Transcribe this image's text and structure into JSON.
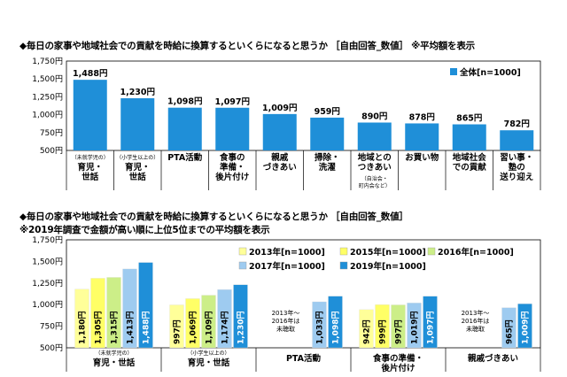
{
  "chart1": {
    "title": "◆毎日の家事や地域社会での貢献を時給に換算するといくらになると思うか ［自由回答_数値］ ※平均額を表示",
    "chart_data": {
      "type": "bar",
      "categories": [
        {
          "main": "育児・\n世話",
          "note": "（未就学児の）"
        },
        {
          "main": "育児・\n世話",
          "note": "（小学生以上の）"
        },
        {
          "main": "PTA活動",
          "note": ""
        },
        {
          "main": "食事の\n準備・\n後片付け",
          "note": ""
        },
        {
          "main": "親戚\nづきあい",
          "note": ""
        },
        {
          "main": "掃除・\n洗濯",
          "note": ""
        },
        {
          "main": "地域との\nつきあい",
          "note": "（自治会・\n町内会など）"
        },
        {
          "main": "お買い物",
          "note": ""
        },
        {
          "main": "地域社会\nでの貢献",
          "note": ""
        },
        {
          "main": "習い事・\n塾の\n送り迎え",
          "note": ""
        }
      ],
      "values": [
        1488,
        1230,
        1098,
        1097,
        1009,
        959,
        890,
        878,
        865,
        782
      ],
      "labels": [
        "1,488円",
        "1,230円",
        "1,098円",
        "1,097円",
        "1,009円",
        "959円",
        "890円",
        "878円",
        "865円",
        "782円"
      ],
      "series_name": "全体[n=1000]",
      "color": "#1f8fd8",
      "ylim": [
        500,
        1750
      ],
      "yticks": [
        "500円",
        "750円",
        "1,000円",
        "1,250円",
        "1,500円",
        "1,750円"
      ]
    }
  },
  "chart2": {
    "title": "◆毎日の家事や地域社会での貢献を時給に換算するといくらになると思うか ［自由回答_数値］",
    "subtitle": "※2019年調査で金額が高い順に上位5位までの平均額を表示",
    "chart_data": {
      "type": "bar",
      "ylim": [
        500,
        1750
      ],
      "yticks": [
        "500円",
        "750円",
        "1,000円",
        "1,250円",
        "1,500円",
        "1,750円"
      ],
      "series": [
        {
          "name": "2013年[n=1000]",
          "color": "#ffff99"
        },
        {
          "name": "2015年[n=1000]",
          "color": "#ffff66"
        },
        {
          "name": "2016年[n=1000]",
          "color": "#ccee88"
        },
        {
          "name": "2017年[n=1000]",
          "color": "#9ecbf0"
        },
        {
          "name": "2019年[n=1000]",
          "color": "#1f8fd8"
        }
      ],
      "groups": [
        {
          "main": "育児・世話",
          "note": "（未就学児の）",
          "values": [
            1180,
            1305,
            1315,
            1413,
            1488
          ],
          "labels": [
            "1,180円",
            "1,305円",
            "1,315円",
            "1,413円",
            "1,488円"
          ],
          "missing_note": ""
        },
        {
          "main": "育児・世話",
          "note": "（小学生以上の）",
          "values": [
            997,
            1069,
            1109,
            1174,
            1230
          ],
          "labels": [
            "997円",
            "1,069円",
            "1,109円",
            "1,174円",
            "1,230円"
          ],
          "missing_note": ""
        },
        {
          "main": "PTA活動",
          "note": "",
          "values": [
            null,
            null,
            null,
            1033,
            1098
          ],
          "labels": [
            "",
            "",
            "",
            "1,033円",
            "1,098円"
          ],
          "missing_note": "2013年～\n2016年は\n未聴取"
        },
        {
          "main": "食事の準備・\n後片付け",
          "note": "",
          "values": [
            942,
            999,
            997,
            1019,
            1097
          ],
          "labels": [
            "942円",
            "999円",
            "997円",
            "1,019円",
            "1,097円"
          ],
          "missing_note": ""
        },
        {
          "main": "親戚づきあい",
          "note": "",
          "values": [
            null,
            null,
            null,
            965,
            1009
          ],
          "labels": [
            "",
            "",
            "",
            "965円",
            "1,009円"
          ],
          "missing_note": "2013年～\n2016年は\n未聴取"
        }
      ]
    }
  }
}
